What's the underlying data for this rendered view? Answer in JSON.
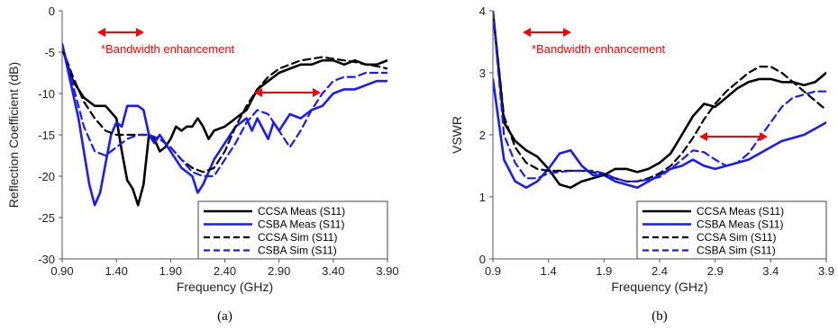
{
  "colors": {
    "ccsa": "#000000",
    "csba": "#1a1aff",
    "annotation": "#ff0000"
  },
  "chart_data": [
    {
      "type": "line",
      "caption": "(a)",
      "xlabel": "Frequency (GHz)",
      "ylabel": "Reflection Coefficient (dB)",
      "xlim": [
        0.9,
        3.9
      ],
      "ylim": [
        -30,
        0
      ],
      "xticks": [
        "0.90",
        "1.40",
        "1.90",
        "2.40",
        "2.90",
        "3.40",
        "3.90"
      ],
      "yticks": [
        "0",
        "-5",
        "-10",
        "-15",
        "-20",
        "-25",
        "-30"
      ],
      "annotation": "*Bandwidth enhancement",
      "legend_position": "bottom-right",
      "series": [
        {
          "name": "CCSA Meas (S11)",
          "color": "ccsa",
          "dash": false,
          "width": 2.6,
          "x": [
            0.9,
            1.0,
            1.1,
            1.2,
            1.3,
            1.4,
            1.45,
            1.5,
            1.55,
            1.6,
            1.65,
            1.7,
            1.75,
            1.8,
            1.85,
            1.9,
            1.95,
            2.0,
            2.05,
            2.1,
            2.15,
            2.2,
            2.25,
            2.3,
            2.4,
            2.5,
            2.6,
            2.7,
            2.8,
            2.9,
            3.0,
            3.1,
            3.2,
            3.3,
            3.4,
            3.5,
            3.6,
            3.7,
            3.8,
            3.9
          ],
          "y": [
            -4.5,
            -8.5,
            -10.5,
            -11.5,
            -11.5,
            -13,
            -17,
            -20.5,
            -21.5,
            -23.5,
            -21,
            -15,
            -15.5,
            -17,
            -16.5,
            -15.5,
            -14,
            -14.5,
            -14,
            -14,
            -13,
            -14,
            -15.5,
            -14.5,
            -14,
            -13,
            -12,
            -9.5,
            -8.5,
            -7.5,
            -7,
            -6.5,
            -6.5,
            -6,
            -6,
            -6.5,
            -6,
            -6.5,
            -6.5,
            -6
          ]
        },
        {
          "name": "CSBA Meas (S11)",
          "color": "csba",
          "dash": false,
          "width": 2.6,
          "x": [
            0.9,
            0.95,
            1.0,
            1.05,
            1.1,
            1.15,
            1.2,
            1.25,
            1.3,
            1.35,
            1.4,
            1.45,
            1.5,
            1.55,
            1.6,
            1.65,
            1.7,
            1.75,
            1.8,
            1.9,
            2.0,
            2.05,
            2.1,
            2.15,
            2.2,
            2.3,
            2.4,
            2.5,
            2.6,
            2.65,
            2.7,
            2.8,
            2.85,
            2.9,
            2.95,
            3.0,
            3.1,
            3.2,
            3.3,
            3.4,
            3.5,
            3.6,
            3.7,
            3.8,
            3.9
          ],
          "y": [
            -4,
            -7,
            -10,
            -13,
            -17,
            -21,
            -23.5,
            -22,
            -18.5,
            -15,
            -13.5,
            -14,
            -11.5,
            -11.5,
            -11.5,
            -12,
            -15,
            -16,
            -15,
            -17,
            -19,
            -19.5,
            -20,
            -22,
            -21,
            -18,
            -16,
            -14,
            -13,
            -14.5,
            -13,
            -15.5,
            -13.5,
            -14.5,
            -13.5,
            -12.5,
            -13,
            -12,
            -11.5,
            -10,
            -9.5,
            -9.5,
            -9,
            -8.5,
            -8.5
          ]
        },
        {
          "name": "CCSA Sim (S11)",
          "color": "ccsa",
          "dash": true,
          "width": 2.2,
          "x": [
            0.9,
            1.0,
            1.1,
            1.2,
            1.3,
            1.4,
            1.5,
            1.6,
            1.7,
            1.8,
            1.9,
            2.0,
            2.1,
            2.2,
            2.3,
            2.4,
            2.5,
            2.6,
            2.7,
            2.8,
            2.9,
            3.0,
            3.1,
            3.2,
            3.3,
            3.4,
            3.5,
            3.6,
            3.7,
            3.8,
            3.9
          ],
          "y": [
            -4.5,
            -8,
            -11,
            -13,
            -14.5,
            -15,
            -15,
            -15,
            -15,
            -15.5,
            -16.5,
            -18,
            -19,
            -19.5,
            -19,
            -17,
            -14,
            -11.5,
            -9.5,
            -8,
            -7,
            -6.5,
            -6,
            -5.8,
            -5.6,
            -5.8,
            -6,
            -6.2,
            -6.5,
            -6.7,
            -7
          ]
        },
        {
          "name": "CSBA Sim (S11)",
          "color": "csba",
          "dash": true,
          "width": 2.2,
          "x": [
            0.9,
            1.0,
            1.1,
            1.2,
            1.3,
            1.4,
            1.5,
            1.6,
            1.7,
            1.8,
            1.9,
            2.0,
            2.1,
            2.2,
            2.3,
            2.4,
            2.5,
            2.6,
            2.7,
            2.8,
            2.9,
            3.0,
            3.1,
            3.2,
            3.3,
            3.4,
            3.5,
            3.6,
            3.7,
            3.8,
            3.9
          ],
          "y": [
            -4,
            -9,
            -14,
            -17,
            -17.5,
            -16.5,
            -15.5,
            -15,
            -15,
            -15.5,
            -16.5,
            -18,
            -19.5,
            -20,
            -20,
            -18,
            -16,
            -13.5,
            -12,
            -12.5,
            -14.5,
            -16.5,
            -14.5,
            -12,
            -10,
            -8.5,
            -8,
            -8,
            -7.5,
            -7.5,
            -7.5
          ]
        }
      ]
    },
    {
      "type": "line",
      "caption": "(b)",
      "xlabel": "Frequency (GHz)",
      "ylabel": "VSWR",
      "xlim": [
        0.9,
        3.9
      ],
      "ylim": [
        0,
        4
      ],
      "xticks": [
        "0.9",
        "1.4",
        "1.9",
        "2.4",
        "2.9",
        "3.4",
        "3.9"
      ],
      "yticks": [
        "4",
        "3",
        "2",
        "1",
        "0"
      ],
      "annotation": "*Bandwidth enhancement",
      "legend_position": "bottom-right",
      "series": [
        {
          "name": "CCSA Meas (S11)",
          "color": "ccsa",
          "dash": false,
          "width": 2.6,
          "x": [
            0.9,
            1.0,
            1.1,
            1.2,
            1.3,
            1.4,
            1.5,
            1.6,
            1.7,
            1.8,
            1.9,
            2.0,
            2.1,
            2.2,
            2.3,
            2.4,
            2.5,
            2.6,
            2.7,
            2.8,
            2.9,
            3.0,
            3.1,
            3.2,
            3.3,
            3.4,
            3.5,
            3.6,
            3.7,
            3.8,
            3.9
          ],
          "y": [
            4.0,
            2.2,
            1.9,
            1.75,
            1.65,
            1.45,
            1.2,
            1.15,
            1.25,
            1.3,
            1.35,
            1.45,
            1.45,
            1.4,
            1.45,
            1.55,
            1.7,
            2.0,
            2.3,
            2.5,
            2.45,
            2.6,
            2.75,
            2.85,
            2.9,
            2.9,
            2.85,
            2.85,
            2.8,
            2.85,
            3.0
          ]
        },
        {
          "name": "CSBA Meas (S11)",
          "color": "csba",
          "dash": false,
          "width": 2.6,
          "x": [
            0.9,
            1.0,
            1.1,
            1.2,
            1.3,
            1.4,
            1.5,
            1.6,
            1.7,
            1.8,
            1.9,
            2.0,
            2.1,
            2.2,
            2.3,
            2.4,
            2.5,
            2.6,
            2.7,
            2.8,
            2.9,
            3.0,
            3.1,
            3.2,
            3.3,
            3.4,
            3.5,
            3.6,
            3.7,
            3.8,
            3.9
          ],
          "y": [
            2.9,
            1.6,
            1.25,
            1.15,
            1.25,
            1.45,
            1.7,
            1.75,
            1.5,
            1.35,
            1.35,
            1.25,
            1.2,
            1.15,
            1.25,
            1.35,
            1.45,
            1.5,
            1.6,
            1.5,
            1.45,
            1.5,
            1.55,
            1.6,
            1.7,
            1.8,
            1.9,
            1.95,
            2.0,
            2.1,
            2.2
          ]
        },
        {
          "name": "CCSA Sim (S11)",
          "color": "ccsa",
          "dash": true,
          "width": 2.2,
          "x": [
            0.9,
            1.0,
            1.1,
            1.2,
            1.3,
            1.4,
            1.5,
            1.6,
            1.7,
            1.8,
            1.9,
            2.0,
            2.1,
            2.2,
            2.3,
            2.4,
            2.5,
            2.6,
            2.7,
            2.8,
            2.9,
            3.0,
            3.1,
            3.2,
            3.3,
            3.4,
            3.5,
            3.6,
            3.7,
            3.8,
            3.9
          ],
          "y": [
            4.0,
            2.3,
            1.8,
            1.55,
            1.45,
            1.42,
            1.42,
            1.42,
            1.42,
            1.4,
            1.35,
            1.3,
            1.25,
            1.25,
            1.3,
            1.38,
            1.5,
            1.7,
            1.95,
            2.25,
            2.5,
            2.7,
            2.85,
            3.0,
            3.1,
            3.1,
            3.0,
            2.85,
            2.7,
            2.55,
            2.4
          ]
        },
        {
          "name": "CSBA Sim (S11)",
          "color": "csba",
          "dash": true,
          "width": 2.2,
          "x": [
            0.9,
            1.0,
            1.1,
            1.2,
            1.3,
            1.4,
            1.5,
            1.6,
            1.7,
            1.8,
            1.9,
            2.0,
            2.1,
            2.2,
            2.3,
            2.4,
            2.5,
            2.6,
            2.7,
            2.8,
            2.9,
            3.0,
            3.1,
            3.2,
            3.3,
            3.4,
            3.5,
            3.6,
            3.7,
            3.8,
            3.9
          ],
          "y": [
            4.0,
            2.0,
            1.55,
            1.3,
            1.3,
            1.38,
            1.4,
            1.42,
            1.42,
            1.42,
            1.38,
            1.3,
            1.25,
            1.25,
            1.28,
            1.32,
            1.45,
            1.6,
            1.75,
            1.72,
            1.6,
            1.5,
            1.55,
            1.7,
            1.95,
            2.2,
            2.45,
            2.6,
            2.65,
            2.7,
            2.7
          ]
        }
      ]
    }
  ]
}
